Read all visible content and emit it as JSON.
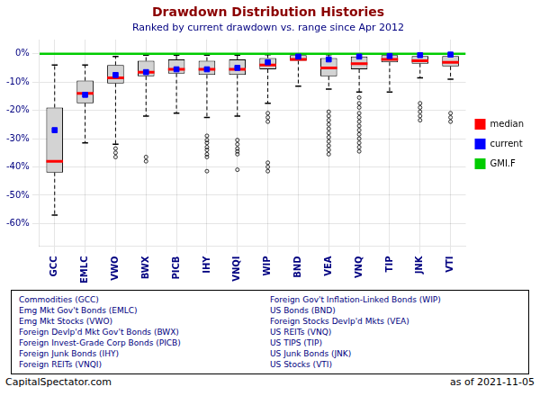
{
  "chart_data": {
    "type": "box",
    "title": "Drawdown Distribution Histories",
    "subtitle": "Ranked by current drawdown vs. range since Apr 2012",
    "footer_left": "CapitalSpectator.com",
    "footer_right": "as of  2021-11-05",
    "categories": [
      "GCC",
      "EMLC",
      "VWO",
      "BWX",
      "PICB",
      "IHY",
      "VNQI",
      "WIP",
      "BND",
      "VEA",
      "VNQ",
      "TIP",
      "JNK",
      "VTI"
    ],
    "color": "#D3D3D3",
    "series": [
      {
        "name": "median",
        "color": "#FF0000"
      },
      {
        "name": "current",
        "color": "#0000FF",
        "marker": "square"
      },
      {
        "name": "GMI.F",
        "color": "#00CC00",
        "value": 0.0
      }
    ],
    "ylim": [
      -68,
      5
    ],
    "yticks": [
      {
        "value": 0,
        "label": "0%"
      },
      {
        "value": -10,
        "label": "-10%"
      },
      {
        "value": -20,
        "label": "-20%"
      },
      {
        "value": -30,
        "label": "-30%"
      },
      {
        "value": -40,
        "label": "-40%"
      },
      {
        "value": -50,
        "label": "-50%"
      },
      {
        "value": -60,
        "label": "-60%"
      }
    ],
    "grid": true,
    "legend": "right",
    "boxes": [
      {
        "q1": -42.0,
        "median": -38.0,
        "q3": -19.0,
        "whisker_low": -57.0,
        "whisker_high": -4.0,
        "current": -27.0,
        "outliers": []
      },
      {
        "q1": -17.5,
        "median": -14.0,
        "q3": -9.5,
        "whisker_low": -31.5,
        "whisker_high": -4.0,
        "current": -14.5,
        "outliers": []
      },
      {
        "q1": -10.5,
        "median": -8.5,
        "q3": -4.0,
        "whisker_low": -32.0,
        "whisker_high": -1.0,
        "current": -7.5,
        "outliers": [
          -33.5,
          -35.0,
          -36.5
        ]
      },
      {
        "q1": -8.0,
        "median": -6.5,
        "q3": -2.5,
        "whisker_low": -22.0,
        "whisker_high": -0.5,
        "current": -6.5,
        "outliers": [
          -36.5,
          -38.0
        ]
      },
      {
        "q1": -7.0,
        "median": -5.5,
        "q3": -2.0,
        "whisker_low": -21.0,
        "whisker_high": -0.5,
        "current": -5.5,
        "outliers": []
      },
      {
        "q1": -7.5,
        "median": -5.5,
        "q3": -2.5,
        "whisker_low": -22.5,
        "whisker_high": -0.5,
        "current": -5.5,
        "outliers": [
          -29.0,
          -30.5,
          -31.5,
          -33.0,
          -34.0,
          -35.5,
          -36.5,
          -41.5
        ]
      },
      {
        "q1": -7.5,
        "median": -5.5,
        "q3": -2.0,
        "whisker_low": -22.0,
        "whisker_high": -0.5,
        "current": -5.0,
        "outliers": [
          -30.5,
          -32.0,
          -33.5,
          -34.5,
          -35.5,
          -41.0
        ]
      },
      {
        "q1": -5.5,
        "median": -4.0,
        "q3": -1.5,
        "whisker_low": -17.5,
        "whisker_high": -0.3,
        "current": -3.0,
        "outliers": [
          -21.0,
          -22.5,
          -24.0,
          -38.5,
          -40.0,
          -41.5
        ]
      },
      {
        "q1": -2.5,
        "median": -2.0,
        "q3": -0.5,
        "whisker_low": -11.5,
        "whisker_high": -0.1,
        "current": -1.0,
        "outliers": []
      },
      {
        "q1": -8.0,
        "median": -5.0,
        "q3": -1.5,
        "whisker_low": -12.5,
        "whisker_high": -0.3,
        "current": -2.0,
        "outliers": [
          -20.5,
          -22.0,
          -23.5,
          -25.0,
          -26.5,
          -28.0,
          -29.5,
          -31.0,
          -32.5,
          -34.0,
          -35.5
        ]
      },
      {
        "q1": -5.5,
        "median": -3.5,
        "q3": -1.0,
        "whisker_low": -13.5,
        "whisker_high": -0.2,
        "current": -1.0,
        "outliers": [
          -15.5,
          -17.5,
          -19.0,
          -21.0,
          -22.5,
          -24.0,
          -25.5,
          -27.0,
          -28.5,
          -30.0,
          -31.5,
          -33.0,
          -34.5
        ]
      },
      {
        "q1": -3.0,
        "median": -2.0,
        "q3": -0.5,
        "whisker_low": -13.5,
        "whisker_high": -0.1,
        "current": -0.8,
        "outliers": []
      },
      {
        "q1": -3.5,
        "median": -2.5,
        "q3": -0.8,
        "whisker_low": -8.5,
        "whisker_high": -0.1,
        "current": -0.5,
        "outliers": [
          -17.5,
          -19.0,
          -20.5,
          -22.0,
          -23.5
        ]
      },
      {
        "q1": -4.5,
        "median": -3.0,
        "q3": -0.8,
        "whisker_low": -9.0,
        "whisker_high": -0.1,
        "current": -0.3,
        "outliers": [
          -21.0,
          -22.5,
          -24.0
        ]
      }
    ],
    "descriptions_left": [
      "Commodities (GCC)",
      "Emg Mkt Gov't Bonds (EMLC)",
      "Emg Mkt Stocks (VWO)",
      "Foreign Devlp'd Mkt Gov't Bonds (BWX)",
      "Foreign Invest-Grade Corp Bonds (PICB)",
      "Foreign Junk Bonds (IHY)",
      "Foreign REITs (VNQI)"
    ],
    "descriptions_right": [
      "Foreign Gov't Inflation-Linked Bonds (WIP)",
      "US Bonds (BND)",
      "Foreign Stocks Devlp'd Mkts (VEA)",
      "US REITs (VNQ)",
      "US TIPS (TIP)",
      "US Junk Bonds (JNK)",
      "US Stocks (VTI)"
    ]
  }
}
